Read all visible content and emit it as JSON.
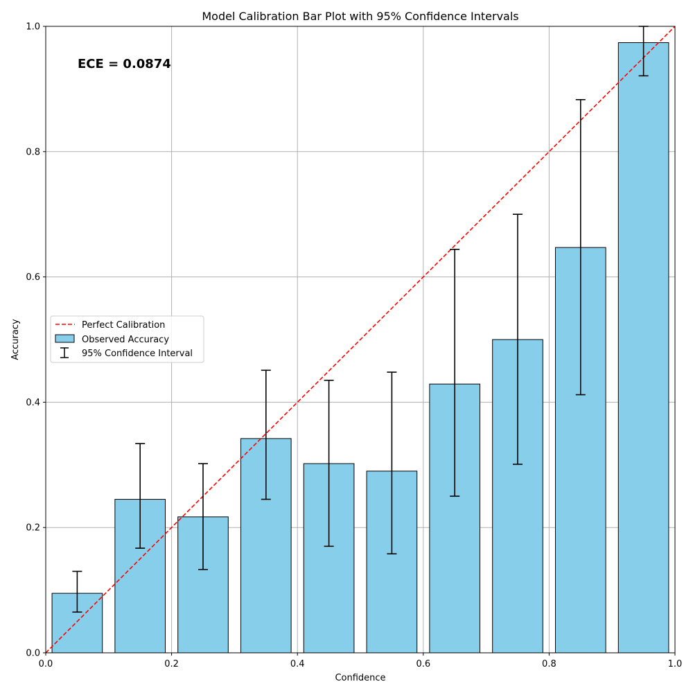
{
  "chart_data": {
    "type": "bar",
    "title": "Model Calibration Bar Plot with 95% Confidence Intervals",
    "xlabel": "Confidence",
    "ylabel": "Accuracy",
    "xlim": [
      0,
      1
    ],
    "ylim": [
      0,
      1
    ],
    "xticks": [
      "0.0",
      "0.2",
      "0.4",
      "0.6",
      "0.8",
      "1.0"
    ],
    "yticks": [
      "0.0",
      "0.2",
      "0.4",
      "0.6",
      "0.8",
      "1.0"
    ],
    "grid": true,
    "annotation": "ECE = 0.0874",
    "bar_width": 0.08,
    "bin_centers": [
      0.05,
      0.15,
      0.25,
      0.35,
      0.45,
      0.55,
      0.65,
      0.75,
      0.85,
      0.95
    ],
    "accuracy": [
      0.095,
      0.245,
      0.217,
      0.342,
      0.302,
      0.29,
      0.429,
      0.5,
      0.647,
      0.974
    ],
    "ci_lower": [
      0.065,
      0.167,
      0.133,
      0.245,
      0.17,
      0.158,
      0.25,
      0.301,
      0.412,
      0.921
    ],
    "ci_upper": [
      0.13,
      0.334,
      0.302,
      0.451,
      0.435,
      0.448,
      0.644,
      0.7,
      0.883,
      1.0
    ],
    "perfect_calibration": {
      "x": [
        0,
        1
      ],
      "y": [
        0,
        1
      ]
    },
    "legend": {
      "placement": "center-left",
      "items": [
        "Perfect Calibration",
        "Observed Accuracy",
        "95% Confidence Interval"
      ]
    },
    "colors": {
      "bar_fill": "#87CEEB",
      "bar_edge": "#000000",
      "diagonal": "#ff0000",
      "errorbar": "#000000",
      "grid": "#b0b0b0"
    }
  }
}
